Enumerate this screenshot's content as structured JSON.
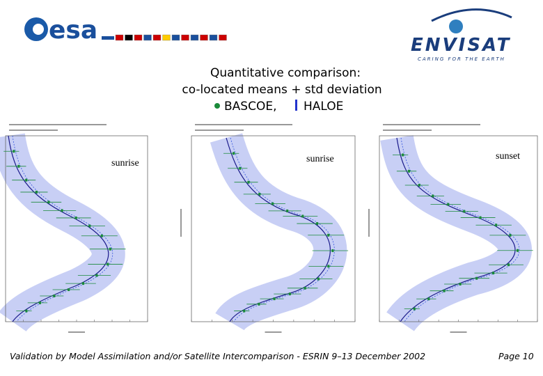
{
  "header": {
    "left_logo": "esa",
    "right_logo": "ENVISAT",
    "right_logo_tagline": "CARING FOR THE EARTH"
  },
  "title": {
    "lines": [
      "Quantitative comparison:",
      "co-located means + std deviation"
    ],
    "legend": [
      "BASCOE,",
      "HALOE"
    ]
  },
  "panels": [
    {
      "label": "sunrise"
    },
    {
      "label": "sunrise"
    },
    {
      "label": "sunset"
    }
  ],
  "footer": {
    "text": "Validation by Model Assimilation and/or Satellite Intercomparison - ESRIN 9–13 December 2002",
    "page": "Page 10"
  }
}
